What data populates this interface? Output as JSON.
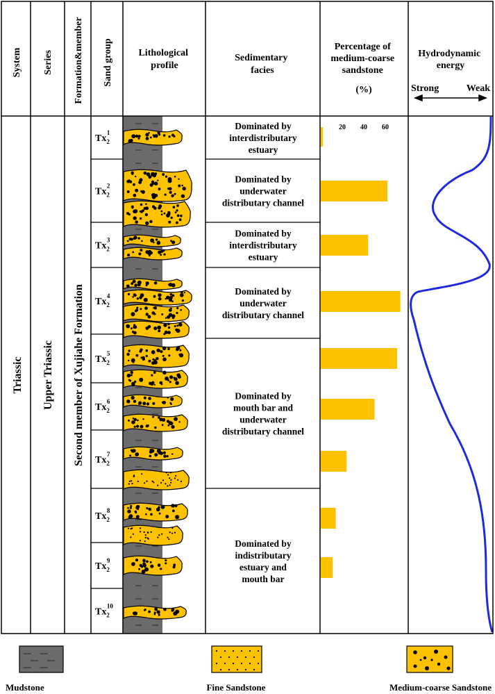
{
  "columns": {
    "system": "System",
    "series": "Series",
    "formation_member": "Formation&member",
    "sand_group": "Sand group",
    "lithological_profile": [
      "Lithological",
      "profile"
    ],
    "sedimentary_facies": [
      "Sedimentary",
      "facies"
    ],
    "percentage": [
      "Percentage of",
      "medium-coarse",
      "sandstone",
      "(%)"
    ],
    "hydrodynamic": [
      "Hydrodynamic",
      "energy"
    ],
    "strong": "Strong",
    "weak": "Weak"
  },
  "system_value": "Triassic",
  "series_value": "Upper Triassic",
  "formation_value": "Second member of  Xujiahe Formation",
  "sand_groups": [
    {
      "base": "Tx",
      "sub": "2",
      "sup": "1",
      "percent": 2
    },
    {
      "base": "Tx",
      "sub": "2",
      "sup": "2",
      "percent": 62
    },
    {
      "base": "Tx",
      "sub": "2",
      "sup": "3",
      "percent": 44
    },
    {
      "base": "Tx",
      "sub": "2",
      "sup": "4",
      "percent": 74
    },
    {
      "base": "Tx",
      "sub": "2",
      "sup": "5",
      "percent": 71
    },
    {
      "base": "Tx",
      "sub": "2",
      "sup": "6",
      "percent": 50
    },
    {
      "base": "Tx",
      "sub": "2",
      "sup": "7",
      "percent": 24
    },
    {
      "base": "Tx",
      "sub": "2",
      "sup": "8",
      "percent": 14
    },
    {
      "base": "Tx",
      "sub": "2",
      "sup": "9",
      "percent": 11
    },
    {
      "base": "Tx",
      "sub": "2",
      "sup": "10",
      "percent": null
    }
  ],
  "facies": [
    {
      "lines": [
        "Dominated by",
        "interdistributary",
        "estuary"
      ]
    },
    {
      "lines": [
        "Dominated by",
        "underwater",
        "distributary channel"
      ]
    },
    {
      "lines": [
        "Dominated by",
        "interdistributary",
        "estuary"
      ]
    },
    {
      "lines": [
        "Dominated by",
        "underwater",
        "distributary channel"
      ]
    },
    {
      "lines": [
        "Dominated by",
        "mouth bar and",
        "underwater",
        "distributary channel"
      ]
    },
    {
      "lines": [
        "Dominated by",
        "indistributary",
        "estuary and",
        "mouth bar"
      ]
    }
  ],
  "percent_axis": {
    "ticks": [
      20,
      40,
      60
    ]
  },
  "legend": {
    "mudstone": "Mudstone",
    "fine_sandstone": "Fine Sandstone",
    "medium_coarse_sandstone": "Medium-coarse Sandstone"
  },
  "colors": {
    "sand": "#fcc200",
    "mud": "#6b6b6b",
    "curve": "#1f2adf"
  }
}
